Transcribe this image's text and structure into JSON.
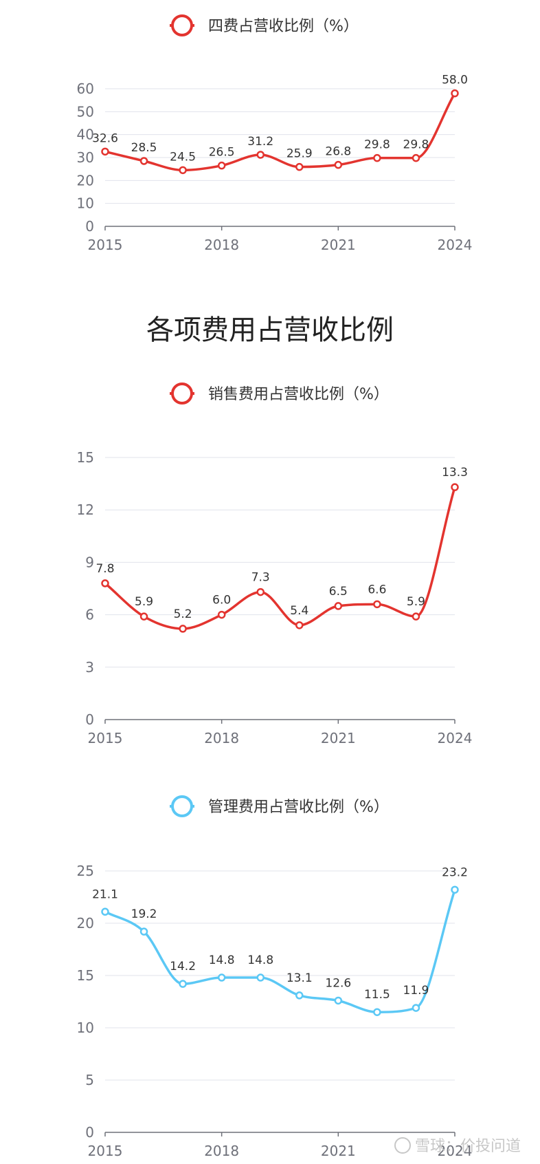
{
  "section_title": "各项费用占营收比例",
  "watermark": "雪球：价投问道",
  "chart_data": [
    {
      "type": "line",
      "series": [
        {
          "name": "四费占营收比例（%）",
          "color": "#e3342f",
          "values": [
            32.6,
            28.5,
            24.5,
            26.5,
            31.2,
            25.9,
            26.8,
            29.8,
            29.8,
            58.0
          ]
        }
      ],
      "x": [
        2015,
        2016,
        2017,
        2018,
        2019,
        2020,
        2021,
        2022,
        2023,
        2024
      ],
      "x_tick_labels": [
        "2015",
        "2018",
        "2021",
        "2024"
      ],
      "y_ticks": [
        "0",
        "10",
        "20",
        "30",
        "40",
        "50",
        "60"
      ],
      "ylim": [
        0,
        60
      ],
      "grid": true,
      "legend_position": "top-center"
    },
    {
      "type": "line",
      "series": [
        {
          "name": "销售费用占营收比例（%）",
          "color": "#e3342f",
          "values": [
            7.8,
            5.9,
            5.2,
            6.0,
            7.3,
            5.4,
            6.5,
            6.6,
            5.9,
            13.3
          ]
        }
      ],
      "x": [
        2015,
        2016,
        2017,
        2018,
        2019,
        2020,
        2021,
        2022,
        2023,
        2024
      ],
      "x_tick_labels": [
        "2015",
        "2018",
        "2021",
        "2024"
      ],
      "y_ticks": [
        "0",
        "3",
        "6",
        "9",
        "12",
        "15"
      ],
      "ylim": [
        0,
        15
      ],
      "grid": true,
      "legend_position": "top-center"
    },
    {
      "type": "line",
      "series": [
        {
          "name": "管理费用占营收比例（%）",
          "color": "#5bc8f5",
          "values": [
            21.1,
            19.2,
            14.2,
            14.8,
            14.8,
            13.1,
            12.6,
            11.5,
            11.9,
            23.2
          ]
        }
      ],
      "x": [
        2015,
        2016,
        2017,
        2018,
        2019,
        2020,
        2021,
        2022,
        2023,
        2024
      ],
      "x_tick_labels": [
        "2015",
        "2018",
        "2021",
        "2024"
      ],
      "y_ticks": [
        "0",
        "5",
        "10",
        "15",
        "20",
        "25"
      ],
      "ylim": [
        0,
        25
      ],
      "grid": true,
      "legend_position": "top-center"
    }
  ]
}
